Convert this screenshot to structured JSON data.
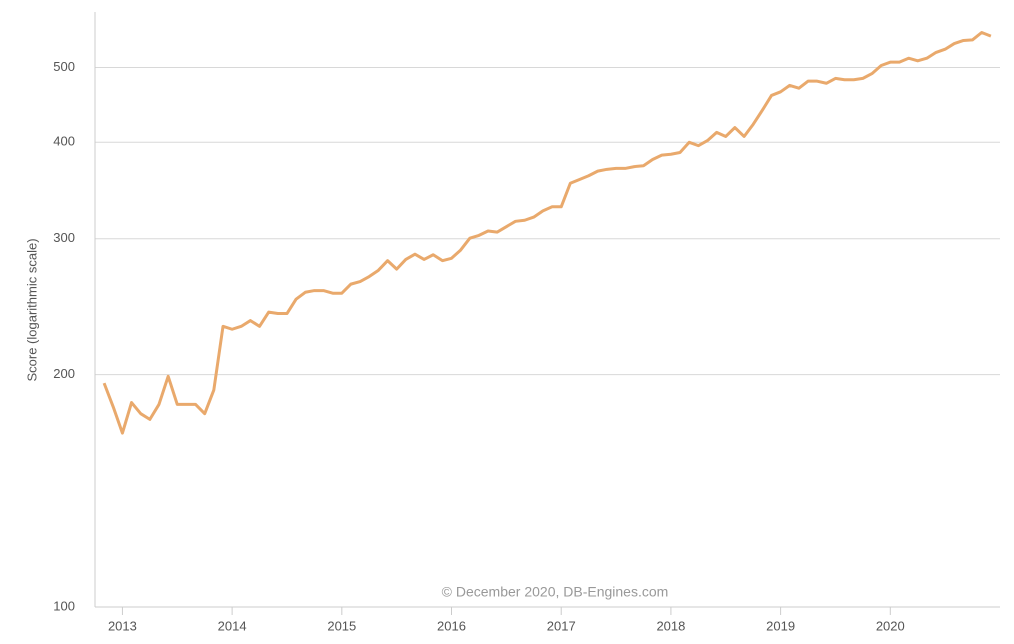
{
  "chart_data": {
    "type": "line",
    "y_label": "Score (logarithmic scale)",
    "annotation": "© December 2020, DB-Engines.com",
    "log_scale": true,
    "grid": true,
    "xlim": [
      2012.75,
      2021.0
    ],
    "xticks": [
      2013,
      2014,
      2015,
      2016,
      2017,
      2018,
      2019,
      2020
    ],
    "ylim": [
      100,
      590
    ],
    "yticks": [
      100,
      200,
      300,
      400,
      500
    ],
    "x": [
      2012.833,
      2012.917,
      2013.0,
      2013.083,
      2013.167,
      2013.25,
      2013.333,
      2013.417,
      2013.5,
      2013.583,
      2013.667,
      2013.75,
      2013.833,
      2013.917,
      2014.0,
      2014.083,
      2014.167,
      2014.25,
      2014.333,
      2014.417,
      2014.5,
      2014.583,
      2014.667,
      2014.75,
      2014.833,
      2014.917,
      2015.0,
      2015.083,
      2015.167,
      2015.25,
      2015.333,
      2015.417,
      2015.5,
      2015.583,
      2015.667,
      2015.75,
      2015.833,
      2015.917,
      2016.0,
      2016.083,
      2016.167,
      2016.25,
      2016.333,
      2016.417,
      2016.5,
      2016.583,
      2016.667,
      2016.75,
      2016.833,
      2016.917,
      2017.0,
      2017.083,
      2017.167,
      2017.25,
      2017.333,
      2017.417,
      2017.5,
      2017.583,
      2017.667,
      2017.75,
      2017.833,
      2017.917,
      2018.0,
      2018.083,
      2018.167,
      2018.25,
      2018.333,
      2018.417,
      2018.5,
      2018.583,
      2018.667,
      2018.75,
      2018.833,
      2018.917,
      2019.0,
      2019.083,
      2019.167,
      2019.25,
      2019.333,
      2019.417,
      2019.5,
      2019.583,
      2019.667,
      2019.75,
      2019.833,
      2019.917,
      2020.0,
      2020.083,
      2020.167,
      2020.25,
      2020.333,
      2020.417,
      2020.5,
      2020.583,
      2020.667,
      2020.75,
      2020.833,
      2020.917
    ],
    "series": [
      {
        "color": "#e9a96c",
        "values": [
          195,
          181.5,
          168,
          184,
          178,
          175,
          183,
          199,
          183,
          183,
          183,
          178,
          191,
          231,
          229,
          231,
          235,
          231,
          241,
          240,
          240,
          250.5,
          255.7,
          257,
          257,
          255,
          255,
          262,
          264,
          268,
          273,
          281,
          274,
          282,
          286.5,
          282,
          286,
          281,
          283,
          290,
          300.5,
          303,
          307,
          306,
          311,
          316,
          317,
          320,
          326,
          330,
          330,
          354,
          358,
          362,
          367,
          369,
          370,
          370,
          372,
          373,
          380,
          385,
          386,
          388,
          400,
          396,
          402,
          412,
          407,
          418,
          407,
          422,
          440,
          460,
          465,
          474,
          470,
          480,
          480,
          477,
          484,
          482,
          482,
          484,
          491,
          503,
          508,
          508,
          514,
          510,
          514,
          523,
          528,
          537,
          542,
          543,
          555,
          549
        ]
      }
    ]
  }
}
